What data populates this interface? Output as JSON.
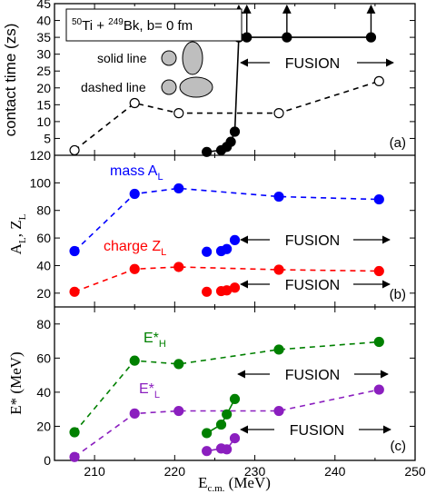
{
  "chart_data": [
    {
      "type": "scatter",
      "panel_label": "(a)",
      "ylabel": "contact time (zs)",
      "ylim": [
        0,
        45
      ],
      "yticks": [
        "5",
        "10",
        "15",
        "20",
        "25",
        "30",
        "35",
        "40",
        "45"
      ],
      "grid": false,
      "legend_box": {
        "reaction_pre": "",
        "ti_mass": "50",
        "ti": "Ti + ",
        "bk_mass": "249",
        "bk": "Bk, b= 0 fm"
      },
      "shape_labels": {
        "solid": "solid line",
        "dashed": "dashed line"
      },
      "fusion_label": "FUSION",
      "series": [
        {
          "style": "dashed",
          "marker": "open",
          "color": "#000000",
          "x": [
            207.5,
            215,
            220.5,
            233,
            245.5
          ],
          "y": [
            1.5,
            15.5,
            12.5,
            12.5,
            22
          ]
        },
        {
          "style": "solid",
          "marker": "filled",
          "color": "#000000",
          "x": [
            224,
            225.8,
            226.5,
            227,
            227.5,
            228,
            229,
            234,
            244.5
          ],
          "y": [
            1,
            1.5,
            2.5,
            4,
            7,
            35,
            35,
            35,
            35
          ]
        }
      ],
      "arrows_up_x": [
        228,
        229,
        234,
        244.5
      ]
    },
    {
      "type": "line",
      "panel_label": "(b)",
      "ylabel": "A",
      "ylabel_sub1": "L",
      "ylabel_mid": ", Z",
      "ylabel_sub2": "L",
      "ylim": [
        10,
        120
      ],
      "yticks": [
        "20",
        "40",
        "60",
        "80",
        "100",
        "120"
      ],
      "grid": false,
      "fusion_label": "FUSION",
      "series": [
        {
          "name_main": "mass A",
          "name_sub": "L",
          "color": "#0000ff",
          "style": "dashed",
          "x": [
            207.5,
            215,
            220.5,
            233,
            245.5
          ],
          "y": [
            50.5,
            92,
            96,
            90,
            88
          ]
        },
        {
          "name_main": "",
          "name_sub": "",
          "color": "#0000ff",
          "style": "none",
          "x": [
            224,
            225.8,
            226.5,
            227.5
          ],
          "y": [
            50,
            50.5,
            52,
            58.5
          ]
        },
        {
          "name_main": "charge Z",
          "name_sub": "L",
          "color": "#ff0000",
          "style": "dashed",
          "x": [
            207.5,
            215,
            220.5,
            233,
            245.5
          ],
          "y": [
            21,
            37.5,
            39,
            37,
            36
          ]
        },
        {
          "name_main": "",
          "name_sub": "",
          "color": "#ff0000",
          "style": "none",
          "x": [
            224,
            225.8,
            226.5,
            227.5
          ],
          "y": [
            21,
            21.5,
            22,
            24
          ]
        }
      ]
    },
    {
      "type": "line",
      "panel_label": "(c)",
      "ylabel": "E* (MeV)",
      "xlabel": "E",
      "xlabel_sub": "c.m.",
      "xlabel_unit": " (MeV)",
      "xlim": [
        205,
        250
      ],
      "xticks": [
        "210",
        "220",
        "230",
        "240",
        "250"
      ],
      "ylim": [
        0,
        90
      ],
      "yticks": [
        "0",
        "20",
        "40",
        "60",
        "80"
      ],
      "grid": false,
      "fusion_label": "FUSION",
      "series": [
        {
          "name_main": "E*",
          "name_sub": "H",
          "color": "#008000",
          "style": "dashed",
          "x": [
            207.5,
            215,
            220.5,
            233,
            245.5
          ],
          "y": [
            16.5,
            58.5,
            56.5,
            65,
            69.5
          ]
        },
        {
          "name_main": "",
          "name_sub": "",
          "color": "#008000",
          "style": "solid",
          "x": [
            224,
            225.8,
            226.5,
            227.5
          ],
          "y": [
            16,
            21,
            27,
            36
          ]
        },
        {
          "name_main": "E*",
          "name_sub": "L",
          "color": "#8b1fbf",
          "style": "dashed",
          "x": [
            207.5,
            215,
            220.5,
            233,
            245.5
          ],
          "y": [
            2,
            27.5,
            29,
            29,
            41.5
          ]
        },
        {
          "name_main": "",
          "name_sub": "",
          "color": "#8b1fbf",
          "style": "solid",
          "x": [
            224,
            225.8,
            226.5,
            227.5
          ],
          "y": [
            5.5,
            7,
            6.5,
            13
          ]
        }
      ]
    }
  ]
}
